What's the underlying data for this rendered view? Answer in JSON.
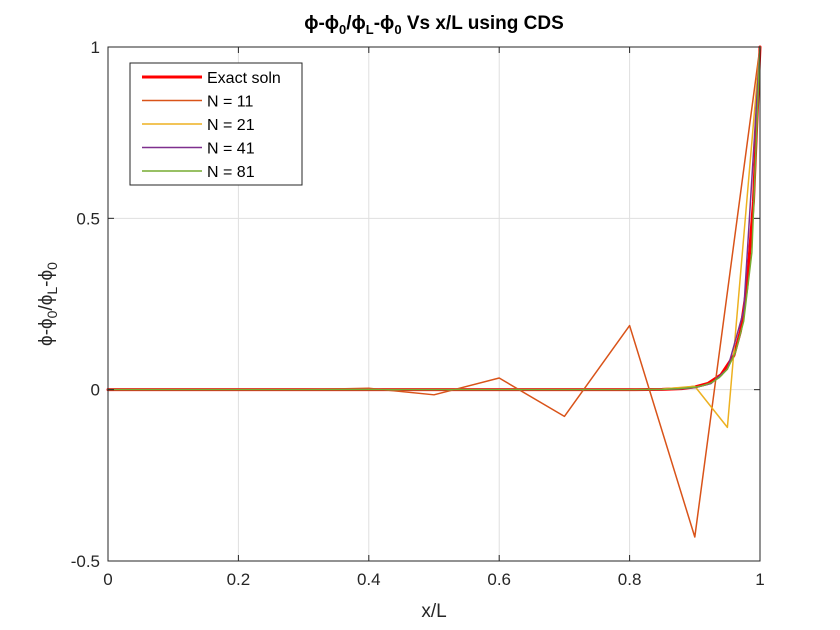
{
  "chart_data": {
    "type": "line",
    "title": {
      "base1": "ϕ-ϕ",
      "sub1": "0",
      "base2": "/ϕ",
      "sub2": "L",
      "base3": "-ϕ",
      "sub3": "0",
      "rest": " Vs x/L using CDS"
    },
    "xlabel": "x/L",
    "ylabel": {
      "base1": "ϕ-ϕ",
      "sub1": "0",
      "base2": "/ϕ",
      "sub2": "L",
      "base3": "-ϕ",
      "sub3": "0"
    },
    "xlim": [
      0,
      1
    ],
    "ylim": [
      -0.5,
      1
    ],
    "xticks": [
      0,
      0.2,
      0.4,
      0.6,
      0.8,
      1
    ],
    "xtick_labels": [
      "0",
      "0.2",
      "0.4",
      "0.6",
      "0.8",
      "1"
    ],
    "yticks": [
      -0.5,
      0,
      0.5,
      1
    ],
    "ytick_labels": [
      "-0.5",
      "0",
      "0.5",
      "1"
    ],
    "grid": true,
    "legend_position": "top-left",
    "series": [
      {
        "name": "Exact soln",
        "color": "#ff0000",
        "width": 3,
        "x": [
          0,
          0.5,
          0.8,
          0.85,
          0.88,
          0.9,
          0.92,
          0.94,
          0.96,
          0.97,
          0.98,
          0.99,
          1.0
        ],
        "y": [
          0,
          0,
          0,
          0.001,
          0.003,
          0.008,
          0.018,
          0.043,
          0.1,
          0.17,
          0.3,
          0.55,
          1.0
        ]
      },
      {
        "name": "N = 11",
        "color": "#d95319",
        "width": 1.5,
        "x": [
          0,
          0.1,
          0.2,
          0.3,
          0.4,
          0.5,
          0.6,
          0.7,
          0.8,
          0.9,
          1.0
        ],
        "y": [
          0,
          0.0,
          0.0,
          0.0,
          0.004,
          -0.015,
          0.034,
          -0.078,
          0.187,
          -0.43,
          1.0
        ]
      },
      {
        "name": "N = 21",
        "color": "#edb120",
        "width": 1.5,
        "x": [
          0,
          0.05,
          0.1,
          0.15,
          0.2,
          0.25,
          0.3,
          0.35,
          0.4,
          0.45,
          0.5,
          0.55,
          0.6,
          0.65,
          0.7,
          0.75,
          0.8,
          0.85,
          0.9,
          0.95,
          1.0
        ],
        "y": [
          0,
          0,
          0,
          0,
          0,
          0,
          0,
          0,
          0,
          0,
          0,
          0,
          0,
          0,
          0,
          0,
          0.0,
          0.002,
          0.01,
          -0.11,
          1.0
        ]
      },
      {
        "name": "N = 41",
        "color": "#7e2f8e",
        "width": 1.5,
        "x": [
          0,
          0.5,
          0.8,
          0.85,
          0.875,
          0.9,
          0.925,
          0.95,
          0.975,
          1.0
        ],
        "y": [
          0,
          0,
          0,
          0.001,
          0.002,
          0.006,
          0.018,
          0.06,
          0.23,
          1.0
        ]
      },
      {
        "name": "N = 81",
        "color": "#77ac30",
        "width": 1.5,
        "x": [
          0,
          0.5,
          0.8,
          0.85,
          0.875,
          0.9,
          0.9125,
          0.925,
          0.9375,
          0.95,
          0.9625,
          0.975,
          0.9875,
          1.0
        ],
        "y": [
          0,
          0,
          0,
          0.001,
          0.003,
          0.007,
          0.012,
          0.02,
          0.035,
          0.06,
          0.11,
          0.2,
          0.4,
          1.0
        ]
      }
    ]
  }
}
